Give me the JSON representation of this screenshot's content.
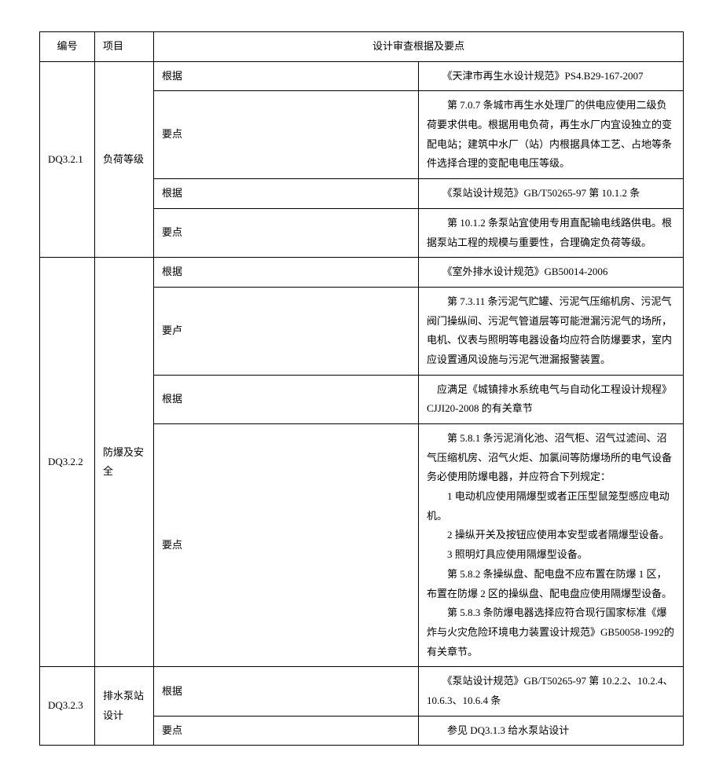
{
  "header": {
    "id": "编号",
    "project": "项目",
    "basis": "设计审查根据及要点"
  },
  "rows": [
    {
      "id": "DQ3.2.1",
      "project": "负荷等级",
      "items": [
        {
          "type": "根据",
          "content": "　　《天津市再生水设计规范》PS4.B29-167-2007"
        },
        {
          "type": "要点",
          "content": "　　第 7.0.7 条城市再生水处理厂的供电应使用二级负荷要求供电。根据用电负荷，再生水厂内宜设独立的变配电站；建筑中水厂（站）内根据具体工艺、占地等条件选择合理的变配电电压等级。"
        },
        {
          "type": "根据",
          "content": "　　《泵站设计规范》GB/T50265-97 第 10.1.2 条"
        },
        {
          "type": "要点",
          "content": "　　第 10.1.2 条泵站宜使用专用直配输电线路供电。根据泵站工程的规模与重要性，合理确定负荷等级。"
        }
      ]
    },
    {
      "id": "DQ3.2.2",
      "project": "防爆及安全",
      "items": [
        {
          "type": "根据",
          "content": "　　《室外排水设计规范》GB50014-2006"
        },
        {
          "type": "要卢",
          "content": "　　第 7.3.11 条污泥气贮罐、污泥气压缩机房、污泥气阀门操纵间、污泥气管道层等可能泄漏污泥气的场所，电机、仪表与照明等电器设备均应符合防爆要求，室内应设置通风设施与污泥气泄漏报警装置。"
        },
        {
          "type": "根据",
          "content": "　应满足《城镇排水系统电气与自动化工程设计规程》CJJI20-2008 的有关章节"
        },
        {
          "type": "要点",
          "content": "　　第 5.8.1 条污泥消化池、沼气柜、沼气过滤间、沼气压缩机房、沼气火炬、加氯间等防爆场所的电气设备务必使用防爆电器，并应符合下列规定：\n　　1 电动机应使用隔爆型或者正压型鼠笼型感应电动机。\n　　2 操纵开关及按钮应使用本安型或者隔爆型设备。\n　　3 照明灯具应使用隔爆型设备。\n　　第 5.8.2 条操纵盘、配电盘不应布置在防爆 1 区，布置在防爆 2 区的操纵盘、配电盘应使用隔爆型设备。\n　　第 5.8.3 条防爆电器选择应符合现行国家标准《爆炸与火灾危险环境电力装置设计规范》GB50058-1992的有关章节。"
        }
      ]
    },
    {
      "id": "DQ3.2.3",
      "project": "排水泵站设计",
      "items": [
        {
          "type": "根据",
          "content": "　　《泵站设计规范》GB/T50265-97 第 10.2.2、10.2.4、10.6.3、10.6.4 条"
        },
        {
          "type": "要点",
          "content": "　　参见 DQ3.1.3 给水泵站设计"
        }
      ]
    }
  ]
}
